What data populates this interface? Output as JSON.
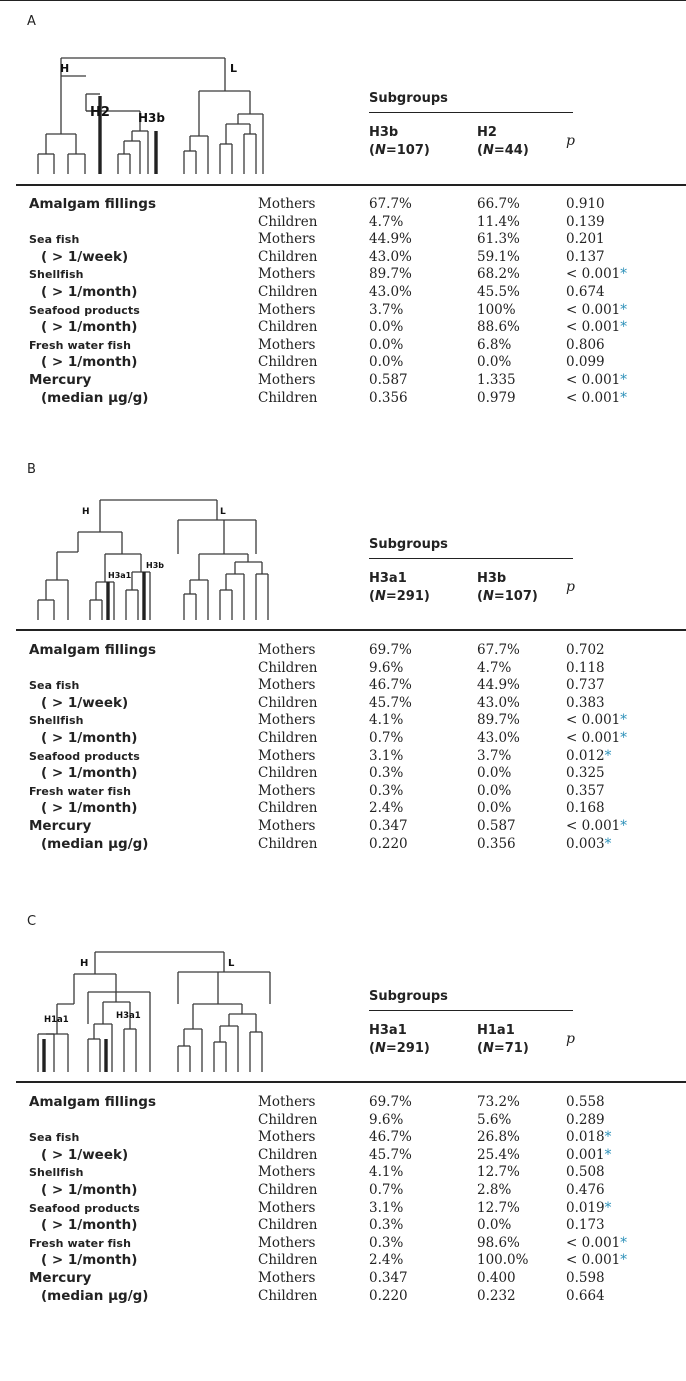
{
  "panels": [
    {
      "letter": "A",
      "dendro": {
        "labels": {
          "h": "H",
          "l": "L",
          "a": "H2",
          "b": "H3b"
        }
      },
      "subgroups_label": "Subgroups",
      "col1": {
        "name": "H3b",
        "n_label": "N",
        "n_value": "107"
      },
      "col2": {
        "name": "H2",
        "n_label": "N",
        "n_value": "44"
      },
      "p_label": "p",
      "rows": [
        {
          "label": "Amalgam fillings",
          "style": "big",
          "group": "Mothers",
          "v1": "67.7%",
          "v2": "66.7%",
          "p": "0.910",
          "sig": ""
        },
        {
          "label": "",
          "style": "big",
          "group": "Children",
          "v1": "4.7%",
          "v2": "11.4%",
          "p": "0.139",
          "sig": ""
        },
        {
          "label": "Sea fish",
          "style": "sc",
          "group": "Mothers",
          "v1": "44.9%",
          "v2": "61.3%",
          "p": "0.201",
          "sig": ""
        },
        {
          "label": "( > 1/week)",
          "style": "ind",
          "group": "Children",
          "v1": "43.0%",
          "v2": "59.1%",
          "p": "0.137",
          "sig": ""
        },
        {
          "label": "Shellfish",
          "style": "sc",
          "group": "Mothers",
          "v1": "89.7%",
          "v2": "68.2%",
          "p": "< 0.001",
          "sig": "*"
        },
        {
          "label": "( > 1/month)",
          "style": "ind",
          "group": "Children",
          "v1": "43.0%",
          "v2": "45.5%",
          "p": "0.674",
          "sig": ""
        },
        {
          "label": "Seafood products",
          "style": "sc",
          "group": "Mothers",
          "v1": "3.7%",
          "v2": "100%",
          "p": "< 0.001",
          "sig": "*"
        },
        {
          "label": "( > 1/month)",
          "style": "ind",
          "group": "Children",
          "v1": "0.0%",
          "v2": "88.6%",
          "p": "< 0.001",
          "sig": "*"
        },
        {
          "label": "Fresh water fish",
          "style": "sc",
          "group": "Mothers",
          "v1": "0.0%",
          "v2": "6.8%",
          "p": "0.806",
          "sig": ""
        },
        {
          "label": "( > 1/month)",
          "style": "ind",
          "group": "Children",
          "v1": "0.0%",
          "v2": "0.0%",
          "p": "0.099",
          "sig": ""
        },
        {
          "label": "Mercury",
          "style": "big",
          "group": "Mothers",
          "v1": "0.587",
          "v2": "1.335",
          "p": "< 0.001",
          "sig": "*"
        },
        {
          "label": "(median µg/g)",
          "style": "ind",
          "group": "Children",
          "v1": "0.356",
          "v2": "0.979",
          "p": "< 0.001",
          "sig": "*"
        }
      ]
    },
    {
      "letter": "B",
      "dendro": {
        "labels": {
          "h": "H",
          "l": "L",
          "a": "H3a1",
          "b": "H3b"
        }
      },
      "subgroups_label": "Subgroups",
      "col1": {
        "name": "H3a1",
        "n_label": "N",
        "n_value": "291"
      },
      "col2": {
        "name": "H3b",
        "n_label": "N",
        "n_value": "107"
      },
      "p_label": "p",
      "rows": [
        {
          "label": "Amalgam fillings",
          "style": "big",
          "group": "Mothers",
          "v1": "69.7%",
          "v2": "67.7%",
          "p": "0.702",
          "sig": ""
        },
        {
          "label": "",
          "style": "big",
          "group": "Children",
          "v1": "9.6%",
          "v2": "4.7%",
          "p": "0.118",
          "sig": ""
        },
        {
          "label": "Sea fish",
          "style": "sc",
          "group": "Mothers",
          "v1": "46.7%",
          "v2": "44.9%",
          "p": "0.737",
          "sig": ""
        },
        {
          "label": "( > 1/week)",
          "style": "ind",
          "group": "Children",
          "v1": "45.7%",
          "v2": "43.0%",
          "p": "0.383",
          "sig": ""
        },
        {
          "label": "Shellfish",
          "style": "sc",
          "group": "Mothers",
          "v1": "4.1%",
          "v2": "89.7%",
          "p": "< 0.001",
          "sig": "*"
        },
        {
          "label": "( > 1/month)",
          "style": "ind",
          "group": "Children",
          "v1": "0.7%",
          "v2": "43.0%",
          "p": "< 0.001",
          "sig": "*"
        },
        {
          "label": "Seafood products",
          "style": "sc",
          "group": "Mothers",
          "v1": "3.1%",
          "v2": "3.7%",
          "p": "0.012",
          "sig": "*"
        },
        {
          "label": "( > 1/month)",
          "style": "ind",
          "group": "Children",
          "v1": "0.3%",
          "v2": "0.0%",
          "p": "0.325",
          "sig": ""
        },
        {
          "label": "Fresh water fish",
          "style": "sc",
          "group": "Mothers",
          "v1": "0.3%",
          "v2": "0.0%",
          "p": "0.357",
          "sig": ""
        },
        {
          "label": "( > 1/month)",
          "style": "ind",
          "group": "Children",
          "v1": "2.4%",
          "v2": "0.0%",
          "p": "0.168",
          "sig": ""
        },
        {
          "label": "Mercury",
          "style": "big",
          "group": "Mothers",
          "v1": "0.347",
          "v2": "0.587",
          "p": "< 0.001",
          "sig": "*"
        },
        {
          "label": "(median µg/g)",
          "style": "ind",
          "group": "Children",
          "v1": "0.220",
          "v2": "0.356",
          "p": "0.003",
          "sig": "*"
        }
      ]
    },
    {
      "letter": "C",
      "dendro": {
        "labels": {
          "h": "H",
          "l": "L",
          "a": "H1a1",
          "b": "H3a1"
        }
      },
      "subgroups_label": "Subgroups",
      "col1": {
        "name": "H3a1",
        "n_label": "N",
        "n_value": "291"
      },
      "col2": {
        "name": "H1a1",
        "n_label": "N",
        "n_value": "71"
      },
      "p_label": "p",
      "rows": [
        {
          "label": "Amalgam fillings",
          "style": "big",
          "group": "Mothers",
          "v1": "69.7%",
          "v2": "73.2%",
          "p": "0.558",
          "sig": ""
        },
        {
          "label": "",
          "style": "big",
          "group": "Children",
          "v1": "9.6%",
          "v2": "5.6%",
          "p": "0.289",
          "sig": ""
        },
        {
          "label": "Sea fish",
          "style": "sc",
          "group": "Mothers",
          "v1": "46.7%",
          "v2": "26.8%",
          "p": "0.018",
          "sig": "*"
        },
        {
          "label": "( > 1/week)",
          "style": "ind",
          "group": "Children",
          "v1": "45.7%",
          "v2": "25.4%",
          "p": "0.001",
          "sig": "*"
        },
        {
          "label": "Shellfish",
          "style": "sc",
          "group": "Mothers",
          "v1": "4.1%",
          "v2": "12.7%",
          "p": "0.508",
          "sig": ""
        },
        {
          "label": "( > 1/month)",
          "style": "ind",
          "group": "Children",
          "v1": "0.7%",
          "v2": "2.8%",
          "p": "0.476",
          "sig": ""
        },
        {
          "label": "Seafood products",
          "style": "sc",
          "group": "Mothers",
          "v1": "3.1%",
          "v2": "12.7%",
          "p": "0.019",
          "sig": "*"
        },
        {
          "label": "( > 1/month)",
          "style": "ind",
          "group": "Children",
          "v1": "0.3%",
          "v2": "0.0%",
          "p": "0.173",
          "sig": ""
        },
        {
          "label": "Fresh water fish",
          "style": "sc",
          "group": "Mothers",
          "v1": "0.3%",
          "v2": "98.6%",
          "p": "< 0.001",
          "sig": "*"
        },
        {
          "label": "( > 1/month)",
          "style": "ind",
          "group": "Children",
          "v1": "2.4%",
          "v2": "100.0%",
          "p": "< 0.001",
          "sig": "*"
        },
        {
          "label": "Mercury",
          "style": "big",
          "group": "Mothers",
          "v1": "0.347",
          "v2": "0.400",
          "p": "0.598",
          "sig": ""
        },
        {
          "label": "(median µg/g)",
          "style": "ind",
          "group": "Children",
          "v1": "0.220",
          "v2": "0.232",
          "p": "0.664",
          "sig": ""
        }
      ]
    }
  ]
}
